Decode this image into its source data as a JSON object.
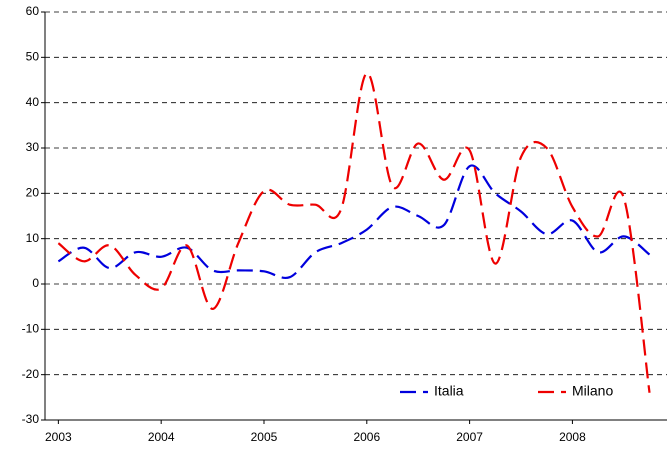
{
  "chart_data": {
    "type": "line",
    "x": [
      2003,
      2003.25,
      2003.5,
      2003.75,
      2004,
      2004.25,
      2004.5,
      2004.75,
      2005,
      2005.25,
      2005.5,
      2005.75,
      2006,
      2006.25,
      2006.5,
      2006.75,
      2007,
      2007.25,
      2007.5,
      2007.75,
      2008,
      2008.25,
      2008.5,
      2008.75
    ],
    "series": [
      {
        "name": "Italia",
        "color": "#0000dd",
        "values": [
          5,
          8,
          3.5,
          7,
          6,
          8,
          3,
          3,
          2.8,
          1.5,
          7,
          9,
          12,
          17,
          15,
          13,
          26,
          20,
          16,
          11,
          14,
          7,
          10.5,
          6.5
        ]
      },
      {
        "name": "Milano",
        "color": "#ee0000",
        "values": [
          9,
          5,
          8.5,
          2,
          -1,
          8.5,
          -5.5,
          9,
          20.5,
          17.5,
          17.5,
          16.5,
          46.5,
          21.5,
          31,
          23,
          29.5,
          4.5,
          28,
          30,
          17,
          10.5,
          19,
          -24
        ]
      }
    ],
    "xlim": [
      2002.87,
      2008.92
    ],
    "xticks": [
      2003,
      2004,
      2005,
      2006,
      2007,
      2008
    ],
    "ylim": [
      -30,
      60
    ],
    "yticks": [
      -30,
      -20,
      -10,
      0,
      10,
      20,
      30,
      40,
      50,
      60
    ],
    "grid": true,
    "legend": "lower right"
  }
}
